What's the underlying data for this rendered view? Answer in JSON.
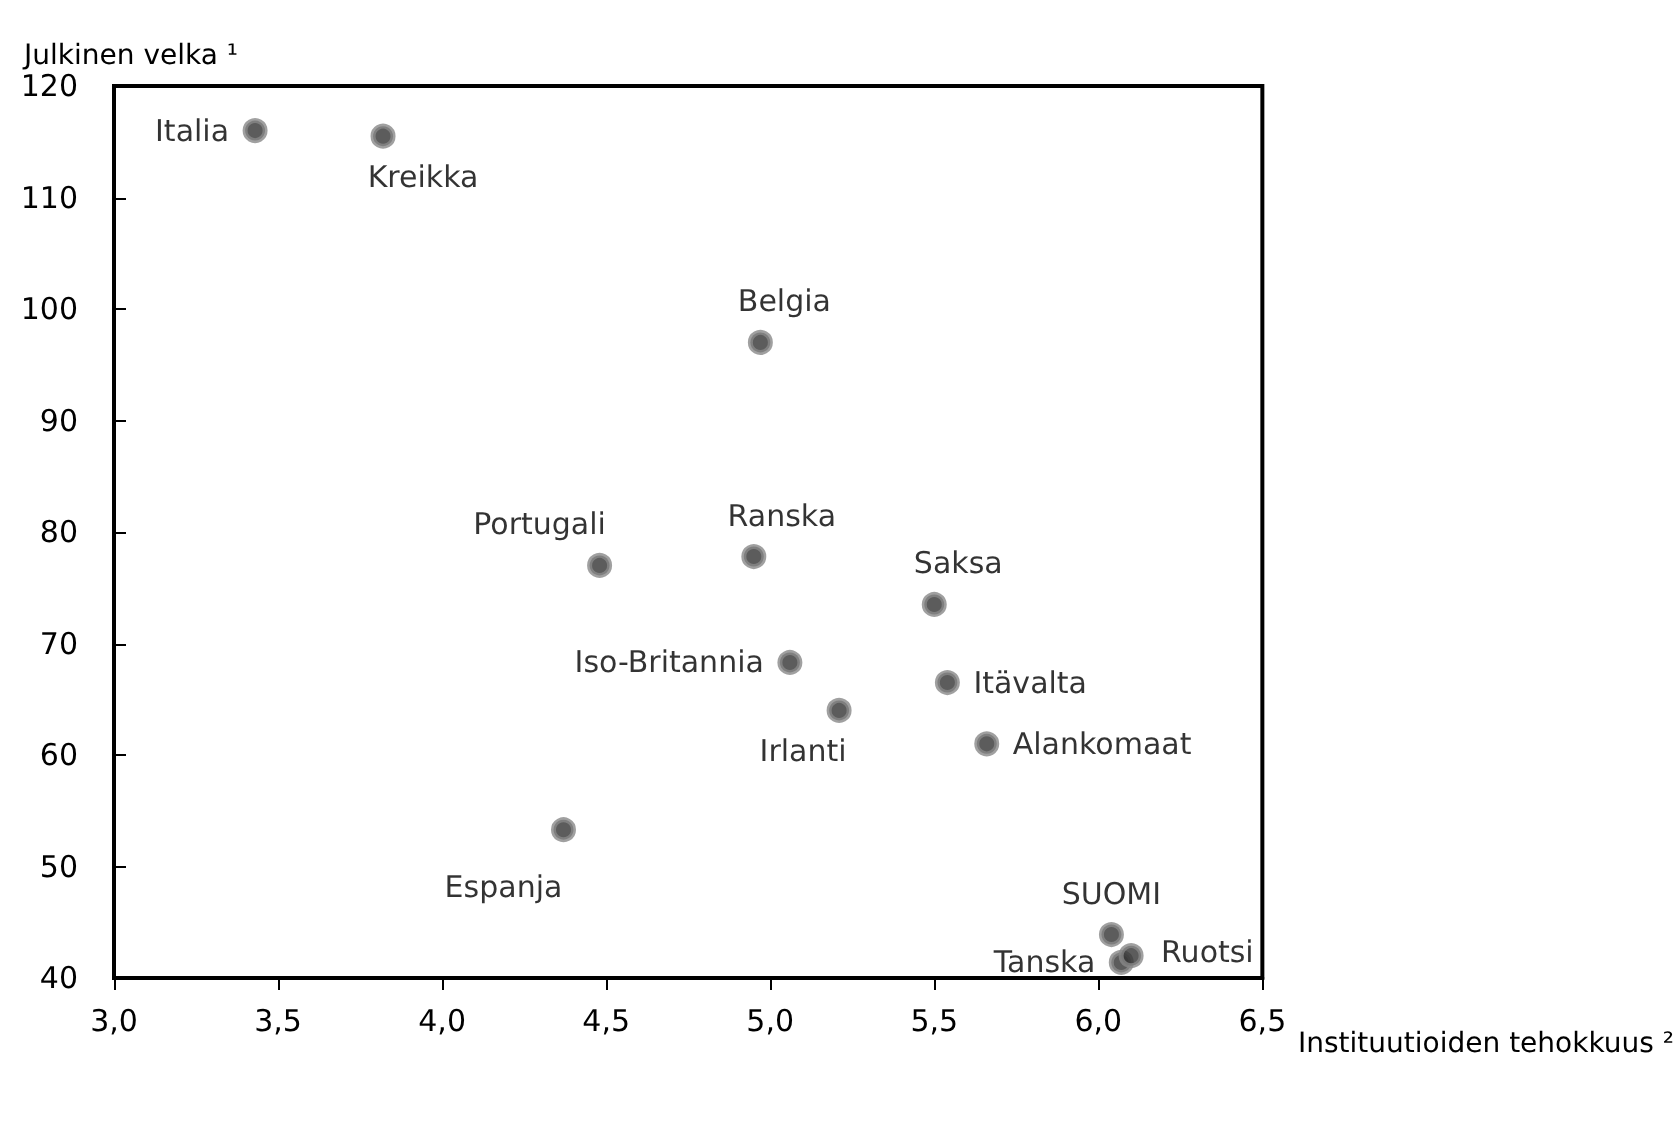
{
  "chart_data": {
    "type": "scatter",
    "xlabel": "Instituutioiden tehokkuus ²",
    "ylabel": "Julkinen velka ¹",
    "x": [
      3.43,
      3.82,
      4.97,
      4.48,
      4.95,
      5.5,
      5.06,
      5.54,
      5.21,
      5.66,
      4.37,
      6.04,
      6.07,
      6.1
    ],
    "series": [
      {
        "color": "#333333",
        "values": [
          116,
          115.5,
          97,
          77,
          77.8,
          73.5,
          68.3,
          66.5,
          64,
          61,
          53.3,
          43.9,
          41.4,
          42
        ]
      }
    ],
    "annotations": [
      {
        "text": "Italia",
        "x": 3.43,
        "y": 116
      },
      {
        "text": "Kreikka",
        "x": 3.82,
        "y": 115.5
      },
      {
        "text": "Belgia",
        "x": 4.97,
        "y": 97
      },
      {
        "text": "Portugali",
        "x": 4.48,
        "y": 77
      },
      {
        "text": "Ranska",
        "x": 4.95,
        "y": 77.8
      },
      {
        "text": "Saksa",
        "x": 5.5,
        "y": 73.5
      },
      {
        "text": "Iso-Britannia",
        "x": 5.06,
        "y": 68.3
      },
      {
        "text": "Itävalta",
        "x": 5.54,
        "y": 66.5
      },
      {
        "text": "Irlanti",
        "x": 5.21,
        "y": 64
      },
      {
        "text": "Alankomaat",
        "x": 5.66,
        "y": 61
      },
      {
        "text": "Espanja",
        "x": 4.37,
        "y": 53.3
      },
      {
        "text": "SUOMI",
        "x": 6.04,
        "y": 43.9
      },
      {
        "text": "Tanska",
        "x": 6.07,
        "y": 41.4
      },
      {
        "text": "Ruotsi",
        "x": 6.1,
        "y": 42
      }
    ],
    "xlim": [
      3,
      6.5
    ],
    "xticks": [
      {
        "value": 3,
        "label": "3,0"
      },
      {
        "value": 3.5,
        "label": "3,5"
      },
      {
        "value": 4,
        "label": "4,0"
      },
      {
        "value": 4.5,
        "label": "4,5"
      },
      {
        "value": 5,
        "label": "5,0"
      },
      {
        "value": 5.5,
        "label": "5,5"
      },
      {
        "value": 6,
        "label": "6,0"
      },
      {
        "value": 6.5,
        "label": "6,5"
      }
    ],
    "ylim": [
      40,
      120
    ],
    "yticks": [
      40,
      50,
      60,
      70,
      80,
      90,
      100,
      110,
      120
    ],
    "grid": false,
    "marker": "circle"
  }
}
